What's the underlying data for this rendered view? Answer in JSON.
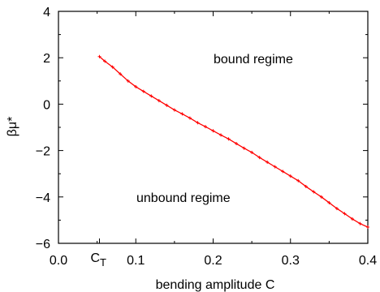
{
  "chart_data": {
    "type": "line",
    "xlabel": "bending amplitude C",
    "ylabel": "βμ*",
    "xlim": [
      0.0,
      0.4
    ],
    "ylim": [
      -6,
      4
    ],
    "x_ticks": [
      "0.0",
      "0.1",
      "0.2",
      "0.3",
      "0.4"
    ],
    "x_tick_values": [
      0.0,
      0.1,
      0.2,
      0.3,
      0.4
    ],
    "y_ticks": [
      "−6",
      "−4",
      "−2",
      "0",
      "2",
      "4"
    ],
    "y_tick_values": [
      -6,
      -4,
      -2,
      0,
      2,
      4
    ],
    "special_tick": {
      "label_main": "C",
      "label_sub": "T",
      "x": 0.053
    },
    "grid": false,
    "annotations": {
      "bound": "bound regime",
      "unbound": "unbound regime"
    },
    "series_color": "#ff0000",
    "series": [
      {
        "x": [
          0.053,
          0.06,
          0.07,
          0.08,
          0.09,
          0.1,
          0.11,
          0.12,
          0.13,
          0.14,
          0.15,
          0.16,
          0.17,
          0.18,
          0.19,
          0.2,
          0.21,
          0.22,
          0.23,
          0.24,
          0.25,
          0.26,
          0.27,
          0.28,
          0.29,
          0.3,
          0.31,
          0.32,
          0.33,
          0.34,
          0.35,
          0.36,
          0.37,
          0.38,
          0.39,
          0.4
        ],
        "y": [
          2.05,
          1.85,
          1.6,
          1.3,
          1.0,
          0.75,
          0.55,
          0.35,
          0.15,
          -0.05,
          -0.25,
          -0.42,
          -0.6,
          -0.8,
          -0.97,
          -1.15,
          -1.33,
          -1.5,
          -1.7,
          -1.9,
          -2.08,
          -2.3,
          -2.5,
          -2.7,
          -2.9,
          -3.1,
          -3.3,
          -3.55,
          -3.78,
          -4.0,
          -4.25,
          -4.5,
          -4.72,
          -4.95,
          -5.15,
          -5.3
        ]
      }
    ]
  }
}
